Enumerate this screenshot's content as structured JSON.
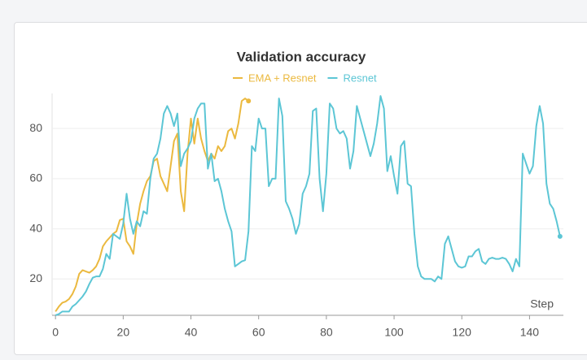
{
  "chart_data": {
    "type": "line",
    "title": "Validation accuracy",
    "x_label": "Step",
    "x": [
      0,
      1,
      2,
      3,
      4,
      5,
      6,
      7,
      8,
      9,
      10,
      11,
      12,
      13,
      14,
      15,
      16,
      17,
      18,
      19,
      20,
      21,
      22,
      23,
      24,
      25,
      26,
      27,
      28,
      29,
      30,
      31,
      32,
      33,
      34,
      35,
      36,
      37,
      38,
      39,
      40,
      41,
      42,
      43,
      44,
      45,
      46,
      47,
      48,
      49,
      50,
      51,
      52,
      53,
      54,
      55,
      56,
      57,
      58,
      59,
      60,
      61,
      62,
      63,
      64,
      65,
      66,
      67,
      68,
      69,
      70,
      71,
      72,
      73,
      74,
      75,
      76,
      77,
      78,
      79,
      80,
      81,
      82,
      83,
      84,
      85,
      86,
      87,
      88,
      89,
      90,
      91,
      92,
      93,
      94,
      95,
      96,
      97,
      98,
      99,
      100,
      101,
      102,
      103,
      104,
      105,
      106,
      107,
      108,
      109,
      110,
      111,
      112,
      113,
      114,
      115,
      116,
      117,
      118,
      119,
      120,
      121,
      122,
      123,
      124,
      125,
      126,
      127,
      128,
      129,
      130,
      131,
      132,
      133,
      134,
      135,
      136,
      137,
      138,
      139,
      140,
      141,
      142,
      143,
      144,
      145,
      146,
      147,
      148,
      149
    ],
    "series": [
      {
        "name": "EMA + Resnet",
        "color": "#ebb93f",
        "values": [
          7,
          9,
          10.5,
          11,
          12,
          14,
          17,
          22,
          23.5,
          23,
          22.5,
          23.5,
          25,
          28,
          33,
          35,
          36.5,
          38,
          39,
          43.5,
          44,
          35,
          33,
          30,
          42,
          50,
          55,
          59,
          61,
          67,
          68,
          61,
          58,
          55,
          65,
          75,
          78,
          55,
          47,
          70,
          84,
          74,
          84,
          76,
          71,
          67,
          70,
          68,
          73,
          71,
          73,
          79,
          80,
          76,
          82,
          91,
          92,
          91,
          null,
          null,
          null,
          null,
          null,
          null,
          null,
          null,
          null,
          null,
          null,
          null,
          null,
          null,
          null,
          null,
          null,
          null,
          null,
          null,
          null,
          null,
          null,
          null,
          null,
          null,
          null,
          null,
          null,
          null,
          null,
          null,
          null,
          null,
          null,
          null,
          null,
          null,
          null,
          null,
          null,
          null,
          null,
          null,
          null,
          null,
          null,
          null,
          null,
          null,
          null,
          null,
          null,
          null,
          null,
          null,
          null,
          null,
          null,
          null,
          null,
          null,
          null,
          null,
          null,
          null,
          null,
          null,
          null,
          null,
          null,
          null,
          null,
          null,
          null,
          null,
          null,
          null,
          null,
          null,
          null,
          null,
          null,
          null,
          null,
          null,
          null,
          null,
          null,
          null,
          null,
          null
        ]
      },
      {
        "name": "Resnet",
        "color": "#5cc6d5",
        "values": [
          5.5,
          6,
          7,
          7,
          7,
          9,
          10,
          11.5,
          13,
          15,
          18,
          20.5,
          21,
          21,
          24,
          30,
          28,
          38,
          37,
          36,
          42,
          54,
          44,
          38,
          43,
          41,
          47,
          46,
          60,
          68,
          70,
          76,
          86,
          89,
          86,
          81,
          86,
          65,
          70,
          72,
          75,
          84,
          88,
          90,
          90,
          64,
          70,
          59,
          60,
          55,
          48,
          43,
          39,
          25,
          26,
          27,
          27.5,
          39,
          73,
          71,
          84,
          80,
          80,
          57,
          60,
          60,
          92,
          85,
          51,
          48,
          44,
          38,
          42,
          54,
          57,
          62,
          87,
          88,
          60,
          47,
          62,
          90,
          88,
          80,
          78,
          79,
          76,
          64,
          71,
          89,
          84,
          79,
          74,
          69,
          74,
          82,
          93,
          88,
          63,
          69,
          61,
          54,
          73,
          75,
          58,
          57,
          38,
          25,
          21,
          20,
          20,
          20,
          19,
          21,
          20,
          34,
          37,
          32,
          27,
          25,
          24.5,
          25,
          29,
          29,
          31,
          32,
          27,
          26,
          28,
          28.5,
          28,
          28,
          28.5,
          28,
          26,
          23,
          28,
          25,
          70,
          66,
          62,
          65,
          81,
          89,
          82,
          58,
          50,
          48,
          43,
          37
        ]
      }
    ],
    "xlim": [
      -1,
      150
    ],
    "ylim": [
      5.5,
      94
    ],
    "xticks": [
      0,
      20,
      40,
      60,
      80,
      100,
      120,
      140
    ],
    "yticks": [
      20,
      40,
      60,
      80
    ],
    "grid": true
  }
}
